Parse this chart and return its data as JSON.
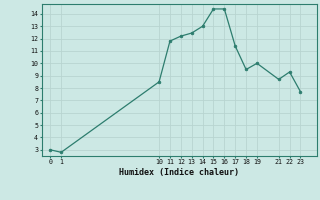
{
  "x": [
    0,
    1,
    10,
    11,
    12,
    13,
    14,
    15,
    16,
    17,
    18,
    19,
    21,
    22,
    23
  ],
  "y": [
    3.0,
    2.8,
    8.5,
    11.8,
    12.2,
    12.45,
    13.0,
    14.4,
    14.4,
    11.4,
    9.5,
    10.0,
    8.7,
    9.3,
    7.7
  ],
  "xticks": [
    0,
    1,
    10,
    11,
    12,
    13,
    14,
    15,
    16,
    17,
    18,
    19,
    21,
    22,
    23
  ],
  "yticks": [
    3,
    4,
    5,
    6,
    7,
    8,
    9,
    10,
    11,
    12,
    13,
    14
  ],
  "ylim": [
    2.5,
    14.8
  ],
  "xlim": [
    -0.8,
    24.5
  ],
  "xlabel": "Humidex (Indice chaleur)",
  "line_color": "#2d7d6e",
  "bg_color": "#cce8e4",
  "grid_color": "#b8d4d0",
  "spine_color": "#2d7d6e"
}
